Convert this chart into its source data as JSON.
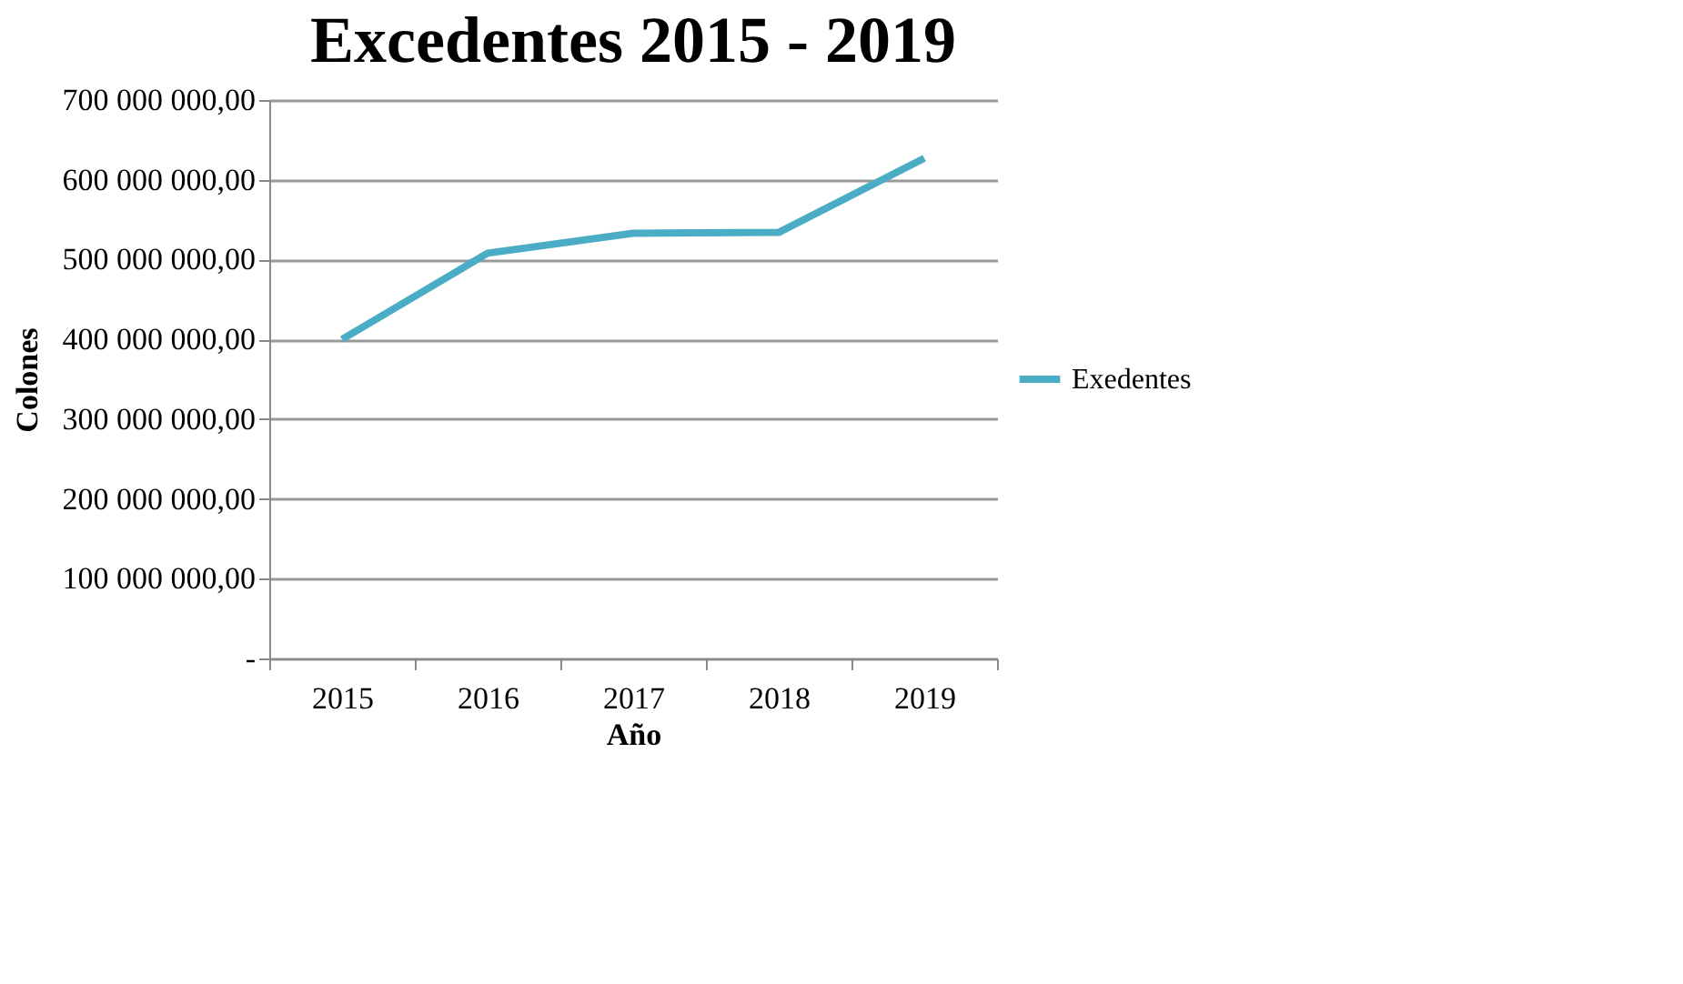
{
  "chart_data": {
    "type": "line",
    "title": "Excedentes 2015 - 2019",
    "xlabel": "Año",
    "ylabel": "Colones",
    "categories": [
      "2015",
      "2016",
      "2017",
      "2018",
      "2019"
    ],
    "series": [
      {
        "name": "Exedentes",
        "color": "#4bacc6",
        "values": [
          400000000,
          508000000,
          533000000,
          534000000,
          627000000
        ]
      }
    ],
    "ylim": [
      0,
      700000000
    ],
    "yticks": [
      {
        "value": 0,
        "label": "-"
      },
      {
        "value": 100000000,
        "label": "100 000 000,00"
      },
      {
        "value": 200000000,
        "label": "200 000 000,00"
      },
      {
        "value": 300000000,
        "label": "300 000 000,00"
      },
      {
        "value": 400000000,
        "label": "400 000 000,00"
      },
      {
        "value": 500000000,
        "label": "500 000 000,00"
      },
      {
        "value": 600000000,
        "label": "600 000 000,00"
      },
      {
        "value": 700000000,
        "label": "700 000 000,00"
      }
    ],
    "grid": "y",
    "legend": "right",
    "marker": "none",
    "line_style": "solid"
  }
}
